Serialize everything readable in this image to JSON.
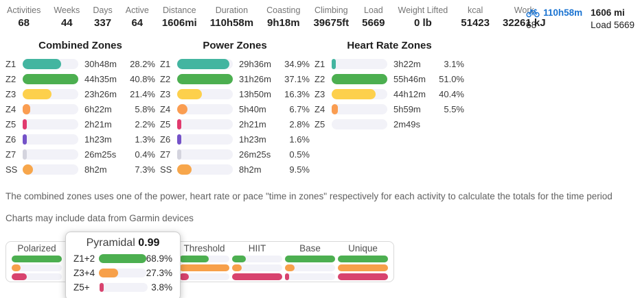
{
  "colors": {
    "accent_blue": "#1a73d1",
    "teal": "#43b5a0",
    "green": "#4caf50",
    "yellow": "#fdd04c",
    "orange": "#fa9d51",
    "pink": "#e13a6e",
    "purple": "#7452c8",
    "gray": "#d4d4de",
    "amber": "#f7a64b",
    "dist_orange": "#f7a04a",
    "dist_pink": "#d8436e"
  },
  "header": {
    "stats": [
      {
        "label": "Activities",
        "value": "68"
      },
      {
        "label": "Weeks",
        "value": "44"
      },
      {
        "label": "Days",
        "value": "337"
      },
      {
        "label": "Active",
        "value": "64"
      },
      {
        "label": "Distance",
        "value": "1606mi"
      },
      {
        "label": "Duration",
        "value": "110h58m"
      },
      {
        "label": "Coasting",
        "value": "9h18m"
      },
      {
        "label": "Climbing",
        "value": "39675ft"
      },
      {
        "label": "Load",
        "value": "5669"
      },
      {
        "label": "Weight Lifted",
        "value": "0 lb"
      },
      {
        "label": "kcal",
        "value": "51423"
      },
      {
        "label": "Work",
        "value": "32261 kJ"
      }
    ],
    "activity_summary": {
      "icon": "bike-icon",
      "duration": "110h58m",
      "distance": "1606 mi",
      "count": "68",
      "load": "Load 5669"
    }
  },
  "chart_data": {
    "type": "bar",
    "note": "horizontal zone bars, fill = bar length as % of track (scaled to max zone)",
    "charts": "see zone_charts"
  },
  "zone_charts": [
    {
      "title": "Combined Zones",
      "rows": [
        {
          "zone": "Z1",
          "time": "30h48m",
          "pct": "28.2%",
          "fill": 69,
          "color": "#43b5a0"
        },
        {
          "zone": "Z2",
          "time": "44h35m",
          "pct": "40.8%",
          "fill": 100,
          "color": "#4caf50"
        },
        {
          "zone": "Z3",
          "time": "23h26m",
          "pct": "21.4%",
          "fill": 52,
          "color": "#fdd04c"
        },
        {
          "zone": "Z4",
          "time": "6h22m",
          "pct": "5.8%",
          "fill": 14,
          "color": "#fa9d51"
        },
        {
          "zone": "Z5",
          "time": "2h21m",
          "pct": "2.2%",
          "fill": 5.5,
          "color": "#e13a6e"
        },
        {
          "zone": "Z6",
          "time": "1h23m",
          "pct": "1.3%",
          "fill": 3.5,
          "color": "#7452c8"
        },
        {
          "zone": "Z7",
          "time": "26m25s",
          "pct": "0.4%",
          "fill": 2,
          "color": "#d4d4de"
        },
        {
          "zone": "SS",
          "time": "8h2m",
          "pct": "7.3%",
          "fill": 18,
          "color": "#f7a64b"
        }
      ]
    },
    {
      "title": "Power Zones",
      "rows": [
        {
          "zone": "Z1",
          "time": "29h36m",
          "pct": "34.9%",
          "fill": 94,
          "color": "#43b5a0"
        },
        {
          "zone": "Z2",
          "time": "31h26m",
          "pct": "37.1%",
          "fill": 100,
          "color": "#4caf50"
        },
        {
          "zone": "Z3",
          "time": "13h50m",
          "pct": "16.3%",
          "fill": 44,
          "color": "#fdd04c"
        },
        {
          "zone": "Z4",
          "time": "5h40m",
          "pct": "6.7%",
          "fill": 18,
          "color": "#fa9d51"
        },
        {
          "zone": "Z5",
          "time": "2h21m",
          "pct": "2.8%",
          "fill": 7.5,
          "color": "#e13a6e"
        },
        {
          "zone": "Z6",
          "time": "1h23m",
          "pct": "1.6%",
          "fill": 4.5,
          "color": "#7452c8"
        },
        {
          "zone": "Z7",
          "time": "26m25s",
          "pct": "0.5%",
          "fill": 2,
          "color": "#d4d4de"
        },
        {
          "zone": "SS",
          "time": "8h2m",
          "pct": "9.5%",
          "fill": 26,
          "color": "#f7a64b"
        }
      ]
    },
    {
      "title": "Heart Rate Zones",
      "rows": [
        {
          "zone": "Z1",
          "time": "3h22m",
          "pct": "3.1%",
          "fill": 6,
          "color": "#43b5a0"
        },
        {
          "zone": "Z2",
          "time": "55h46m",
          "pct": "51.0%",
          "fill": 100,
          "color": "#4caf50"
        },
        {
          "zone": "Z3",
          "time": "44h12m",
          "pct": "40.4%",
          "fill": 79,
          "color": "#fdd04c"
        },
        {
          "zone": "Z4",
          "time": "5h59m",
          "pct": "5.5%",
          "fill": 11,
          "color": "#fa9d51"
        },
        {
          "zone": "Z5",
          "time": "2m49s",
          "pct": "",
          "fill": 0,
          "color": "#e13a6e"
        }
      ]
    }
  ],
  "notes": [
    "The combined zones uses one of the power, heart rate or pace \"time in zones\" respectively for each activity to calculate the totals for the time period",
    "Charts may include data from Garmin devices"
  ],
  "distribution": {
    "left_card": {
      "label": "Polarized",
      "bars": [
        {
          "color": "#4caf50",
          "fill": 100
        },
        {
          "color": "#f7a04a",
          "fill": 18
        },
        {
          "color": "#d8436e",
          "fill": 30
        }
      ]
    },
    "right_cards": [
      {
        "label": "Threshold",
        "bars": [
          {
            "color": "#4caf50",
            "fill": 59
          },
          {
            "color": "#f7a04a",
            "fill": 100
          },
          {
            "color": "#d8436e",
            "fill": 19
          }
        ]
      },
      {
        "label": "HIIT",
        "bars": [
          {
            "color": "#4caf50",
            "fill": 27
          },
          {
            "color": "#f7a04a",
            "fill": 19
          },
          {
            "color": "#d8436e",
            "fill": 100
          }
        ]
      },
      {
        "label": "Base",
        "bars": [
          {
            "color": "#4caf50",
            "fill": 100
          },
          {
            "color": "#f7a04a",
            "fill": 19
          },
          {
            "color": "#d8436e",
            "fill": 6
          }
        ]
      },
      {
        "label": "Unique",
        "bars": [
          {
            "color": "#4caf50",
            "fill": 100
          },
          {
            "color": "#f7a04a",
            "fill": 100
          },
          {
            "color": "#d8436e",
            "fill": 100
          }
        ]
      }
    ],
    "tooltip": {
      "title": "Pyramidal",
      "value": "0.99",
      "rows": [
        {
          "label": "Z1+2",
          "pct": "68.9%",
          "fill": 100,
          "color": "#4caf50"
        },
        {
          "label": "Z3+4",
          "pct": "27.3%",
          "fill": 40,
          "color": "#f7a04a"
        },
        {
          "label": "Z5+",
          "pct": "3.8%",
          "fill": 6,
          "color": "#d8436e"
        }
      ]
    }
  }
}
